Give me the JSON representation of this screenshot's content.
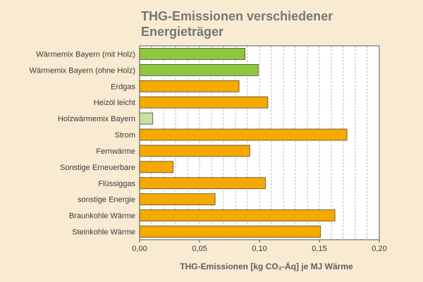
{
  "chart_data": {
    "type": "bar",
    "orientation": "horizontal",
    "title": "THG-Emissionen verschiedener Energieträger",
    "xlabel": "THG-Emissionen [kg CO₂-Äq] je MJ Wärme",
    "ylabel": "",
    "xlim": [
      0,
      0.2
    ],
    "ticks": [
      {
        "value": 0.0,
        "label": "0,00"
      },
      {
        "value": 0.05,
        "label": "0,05"
      },
      {
        "value": 0.1,
        "label": "0,10"
      },
      {
        "value": 0.15,
        "label": "0,15"
      },
      {
        "value": 0.2,
        "label": "0,20"
      }
    ],
    "grid": true,
    "categories": [
      "Wärmemix Bayern (mit Holz)",
      "Wärmemix Bayern (ohne Holz)",
      "Erdgas",
      "Heizöl leicht",
      "Holzwärmemix Bayern",
      "Strom",
      "Fernwärme",
      "Sonstige Erneuerbare",
      "Flüssiggas",
      "sonstige Energie",
      "Braunkohle Wärme",
      "Steinkohle Wärme"
    ],
    "values": [
      0.088,
      0.099,
      0.083,
      0.107,
      0.011,
      0.173,
      0.092,
      0.028,
      0.105,
      0.063,
      0.163,
      0.151
    ],
    "bar_colors": [
      "#8dc63f",
      "#8dc63f",
      "#f5a800",
      "#f5a800",
      "#c5e0a5",
      "#f5a800",
      "#f5a800",
      "#f5a800",
      "#f5a800",
      "#f5a800",
      "#f5a800",
      "#f5a800"
    ],
    "bar_stroke": "#5a4a2a",
    "plot_background": "#ffffff",
    "grid_color": "#b8b8b8",
    "page_background": "#f8ebd1"
  }
}
